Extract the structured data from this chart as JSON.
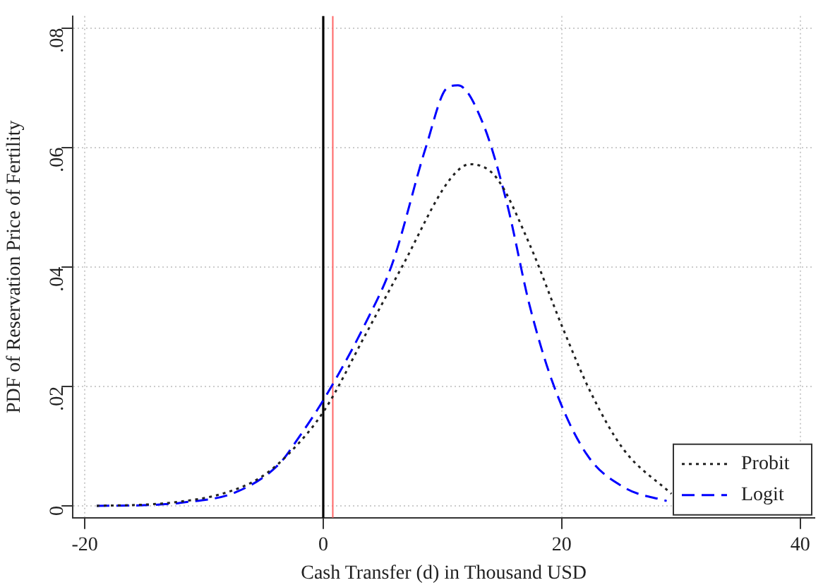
{
  "chart_data": {
    "type": "line",
    "xlabel": "Cash Transfer (d) in Thousand USD",
    "ylabel": "PDF of Reservation Price of Fertility",
    "xlim": [
      -21,
      41.2
    ],
    "xticks": [
      -20,
      0,
      20,
      40
    ],
    "ylim": [
      -0.002,
      0.082
    ],
    "yticks": [
      {
        "value": 0,
        "label": "0"
      },
      {
        "value": 0.02,
        "label": ".02"
      },
      {
        "value": 0.04,
        "label": ".04"
      },
      {
        "value": 0.06,
        "label": ".06"
      },
      {
        "value": 0.08,
        "label": ".08"
      }
    ],
    "grid": true,
    "legend": "bottom right",
    "marker": "none",
    "series": [
      {
        "name": "Probit",
        "color": "#222222",
        "line_style": "dotted",
        "x": [
          -19,
          -15,
          -12.4,
          -8.5,
          -5.3,
          -2.9,
          0.1,
          3.5,
          6.6,
          10.6,
          12.3,
          14.5,
          17.3,
          20.1,
          22.5,
          25.2,
          29.2
        ],
        "values": [
          0,
          0.0002,
          0.0006,
          0.002,
          0.0047,
          0.0087,
          0.016,
          0.0285,
          0.04,
          0.0546,
          0.0572,
          0.055,
          0.0438,
          0.0297,
          0.0187,
          0.0094,
          0.002
        ]
      },
      {
        "name": "Logit",
        "color": "#0000ff",
        "line_style": "dashed",
        "x": [
          -19,
          -15,
          -12,
          -7.3,
          -3.7,
          -2.1,
          0.1,
          3.5,
          5.8,
          8.6,
          10.4,
          11.3,
          13.4,
          15.4,
          17.3,
          19.3,
          22.1,
          25.3,
          28.8
        ],
        "values": [
          0,
          0.0001,
          0.0005,
          0.0023,
          0.007,
          0.0113,
          0.018,
          0.0304,
          0.0406,
          0.06,
          0.07,
          0.0704,
          0.064,
          0.0507,
          0.0336,
          0.0203,
          0.0086,
          0.003,
          0.0008
        ]
      }
    ],
    "ref_lines": [
      {
        "axis": "x",
        "value": 0,
        "color": "#000000"
      },
      {
        "axis": "x",
        "value": 0.8,
        "color": "#ff6666"
      }
    ]
  }
}
